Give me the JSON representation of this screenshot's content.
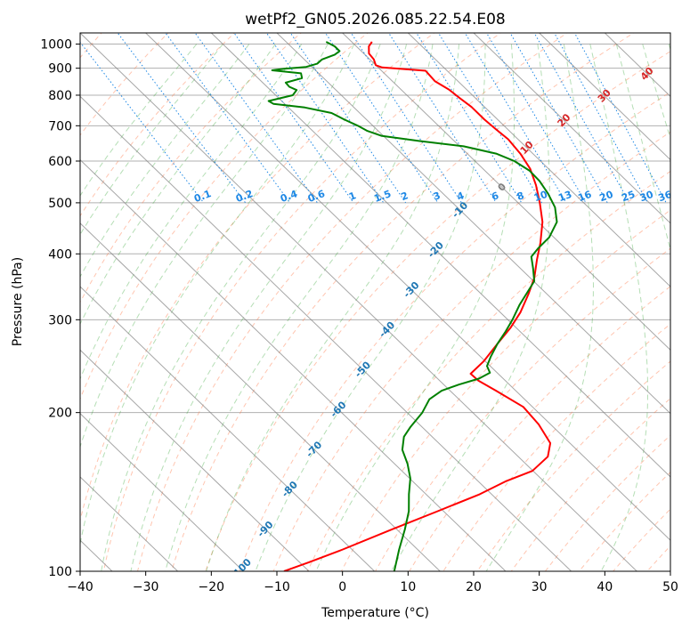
{
  "chart_data": {
    "type": "line",
    "title": "wetPf2_GN05.2026.085.22.54.E08",
    "xlabel": "Temperature (°C)",
    "ylabel": "Pressure (hPa)",
    "xlim": [
      -40,
      50
    ],
    "ylim": [
      1050,
      100
    ],
    "y_scale": "log",
    "x_ticks": [
      -40,
      -30,
      -20,
      -10,
      0,
      10,
      20,
      30,
      40,
      50
    ],
    "x_tick_labels": [
      "−40",
      "−30",
      "−20",
      "−10",
      "0",
      "10",
      "20",
      "30",
      "40",
      "50"
    ],
    "y_ticks": [
      1000,
      900,
      800,
      700,
      600,
      500,
      400,
      300,
      200,
      100
    ],
    "y_tick_labels": [
      "1000",
      "900",
      "800",
      "700",
      "600",
      "500",
      "400",
      "300",
      "200",
      "100"
    ],
    "grid": true,
    "skew_slope": 36.1,
    "series": [
      {
        "role": "temperature",
        "color": "#ff0000",
        "points": [
          {
            "p": 1010,
            "t": 3.1
          },
          {
            "p": 990,
            "t": 1.9
          },
          {
            "p": 960,
            "t": 0.8
          },
          {
            "p": 935,
            "t": 0.6
          },
          {
            "p": 912,
            "t": 0.0
          },
          {
            "p": 903,
            "t": 0.6
          },
          {
            "p": 890,
            "t": 6.7
          },
          {
            "p": 870,
            "t": 6.6
          },
          {
            "p": 850,
            "t": 6.5
          },
          {
            "p": 820,
            "t": 7.3
          },
          {
            "p": 790,
            "t": 7.6
          },
          {
            "p": 760,
            "t": 8.0
          },
          {
            "p": 720,
            "t": 8.0
          },
          {
            "p": 690,
            "t": 8.2
          },
          {
            "p": 660,
            "t": 8.5
          },
          {
            "p": 620,
            "t": 8.1
          },
          {
            "p": 580,
            "t": 7.2
          },
          {
            "p": 540,
            "t": 5.5
          },
          {
            "p": 500,
            "t": 3.3
          },
          {
            "p": 460,
            "t": 0.7
          },
          {
            "p": 420,
            "t": -2.9
          },
          {
            "p": 390,
            "t": -6.1
          },
          {
            "p": 360,
            "t": -9.4
          },
          {
            "p": 335,
            "t": -12.9
          },
          {
            "p": 310,
            "t": -16.9
          },
          {
            "p": 290,
            "t": -20.8
          },
          {
            "p": 270,
            "t": -25.4
          },
          {
            "p": 250,
            "t": -30.3
          },
          {
            "p": 237,
            "t": -34.2
          },
          {
            "p": 230,
            "t": -34.1
          },
          {
            "p": 220,
            "t": -33.0
          },
          {
            "p": 205,
            "t": -31.4
          },
          {
            "p": 190,
            "t": -31.8
          },
          {
            "p": 175,
            "t": -33.0
          },
          {
            "p": 165,
            "t": -35.5
          },
          {
            "p": 155,
            "t": -40.1
          },
          {
            "p": 148,
            "t": -45.9
          },
          {
            "p": 140,
            "t": -51.8
          },
          {
            "p": 130,
            "t": -60.9
          },
          {
            "p": 120,
            "t": -70.8
          },
          {
            "p": 110,
            "t": -81.4
          },
          {
            "p": 104,
            "t": -88.6
          },
          {
            "p": 100,
            "t": -93.8
          }
        ]
      },
      {
        "role": "dewpoint",
        "color": "#008000",
        "points": [
          {
            "p": 1010,
            "t": -3.9
          },
          {
            "p": 990,
            "t": -3.3
          },
          {
            "p": 970,
            "t": -3.3
          },
          {
            "p": 955,
            "t": -4.6
          },
          {
            "p": 935,
            "t": -7.3
          },
          {
            "p": 918,
            "t": -8.7
          },
          {
            "p": 905,
            "t": -10.9
          },
          {
            "p": 898,
            "t": -14.5
          },
          {
            "p": 892,
            "t": -16.6
          },
          {
            "p": 880,
            "t": -12.7
          },
          {
            "p": 862,
            "t": -13.3
          },
          {
            "p": 845,
            "t": -16.5
          },
          {
            "p": 830,
            "t": -16.6
          },
          {
            "p": 818,
            "t": -16.0
          },
          {
            "p": 800,
            "t": -17.4
          },
          {
            "p": 780,
            "t": -22.0
          },
          {
            "p": 770,
            "t": -21.7
          },
          {
            "p": 758,
            "t": -17.5
          },
          {
            "p": 740,
            "t": -14.3
          },
          {
            "p": 720,
            "t": -13.4
          },
          {
            "p": 700,
            "t": -12.3
          },
          {
            "p": 685,
            "t": -11.7
          },
          {
            "p": 670,
            "t": -10.3
          },
          {
            "p": 655,
            "t": -5.4
          },
          {
            "p": 640,
            "t": 0.6
          },
          {
            "p": 620,
            "t": 4.4
          },
          {
            "p": 600,
            "t": 6.0
          },
          {
            "p": 575,
            "t": 6.8
          },
          {
            "p": 550,
            "t": 6.7
          },
          {
            "p": 520,
            "t": 6.0
          },
          {
            "p": 490,
            "t": 4.9
          },
          {
            "p": 460,
            "t": 2.9
          },
          {
            "p": 430,
            "t": -0.7
          },
          {
            "p": 410,
            "t": -4.1
          },
          {
            "p": 395,
            "t": -6.5
          },
          {
            "p": 375,
            "t": -8.1
          },
          {
            "p": 355,
            "t": -9.9
          },
          {
            "p": 340,
            "t": -12.4
          },
          {
            "p": 320,
            "t": -15.9
          },
          {
            "p": 300,
            "t": -19.3
          },
          {
            "p": 285,
            "t": -22.2
          },
          {
            "p": 270,
            "t": -25.4
          },
          {
            "p": 255,
            "t": -28.5
          },
          {
            "p": 245,
            "t": -30.5
          },
          {
            "p": 238,
            "t": -31.1
          },
          {
            "p": 232,
            "t": -33.7
          },
          {
            "p": 226,
            "t": -37.7
          },
          {
            "p": 220,
            "t": -41.3
          },
          {
            "p": 212,
            "t": -44.5
          },
          {
            "p": 200,
            "t": -47.7
          },
          {
            "p": 188,
            "t": -51.7
          },
          {
            "p": 180,
            "t": -54.3
          },
          {
            "p": 170,
            "t": -56.6
          },
          {
            "p": 160,
            "t": -58.0
          },
          {
            "p": 150,
            "t": -59.9
          },
          {
            "p": 140,
            "t": -62.6
          },
          {
            "p": 130,
            "t": -65.3
          },
          {
            "p": 120,
            "t": -68.8
          },
          {
            "p": 110,
            "t": -72.8
          },
          {
            "p": 100,
            "t": -77.0
          }
        ]
      }
    ],
    "isotherm_labels": [
      {
        "value": -100,
        "text": "-100"
      },
      {
        "value": -90,
        "text": "-90"
      },
      {
        "value": -80,
        "text": "-80"
      },
      {
        "value": -70,
        "text": "-70"
      },
      {
        "value": -60,
        "text": "-60"
      },
      {
        "value": -50,
        "text": "-50"
      },
      {
        "value": -40,
        "text": "-40"
      },
      {
        "value": -30,
        "text": "-30"
      },
      {
        "value": -20,
        "text": "-20"
      },
      {
        "value": -10,
        "text": "-10"
      },
      {
        "value": 0,
        "text": "0"
      },
      {
        "value": 10,
        "text": "10"
      },
      {
        "value": 20,
        "text": "20"
      },
      {
        "value": 30,
        "text": "30"
      },
      {
        "value": 40,
        "text": "40"
      }
    ],
    "mixing_ratio_labels": [
      "0.1",
      "0.2",
      "0.4",
      "0.6",
      "1",
      "1.5",
      "2",
      "3",
      "4",
      "6",
      "8",
      "10",
      "13",
      "16",
      "20",
      "25",
      "30",
      "36"
    ],
    "mixing_ratio_label_pressure": 500,
    "colors": {
      "temperature": "#ff0000",
      "dewpoint": "#008000",
      "isotherm": "#808080",
      "dry_adiabat": "#ff7f50",
      "moist_adiabat": "#2ca02c",
      "mixing_ratio": "#1e88e5",
      "cold_label": "#1f77b4",
      "zero_label": "#808080",
      "warm_label": "#d62728",
      "grid": "#b0b0b0"
    }
  }
}
